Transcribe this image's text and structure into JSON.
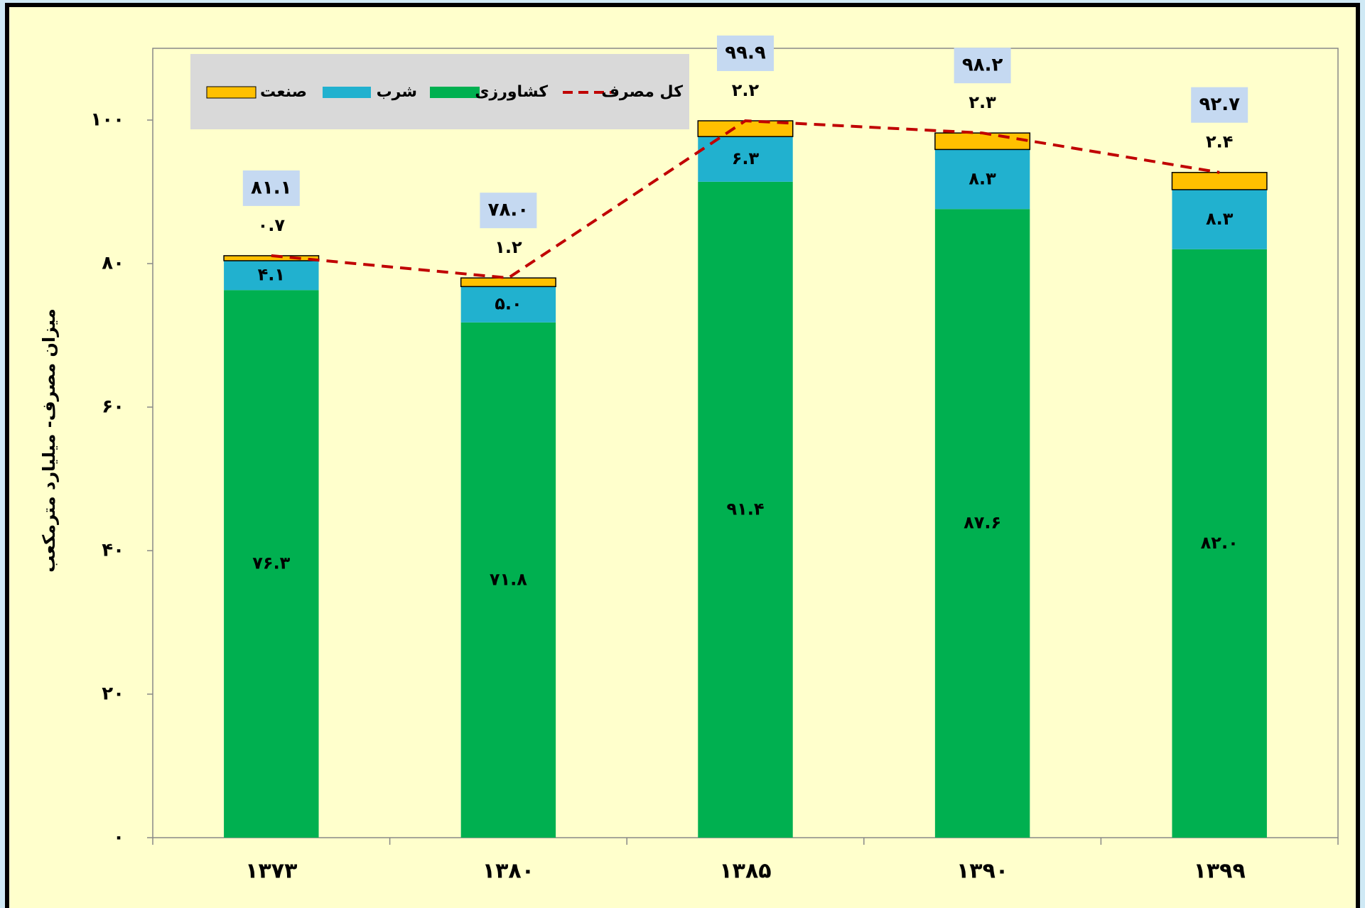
{
  "chart_data": {
    "type": "bar",
    "stacked": true,
    "y_label": "میزان مصرف- میلیارد مترمکعب",
    "categories": [
      "۱۳۷۳",
      "۱۳۸۰",
      "۱۳۸۵",
      "۱۳۹۰",
      "۱۳۹۹"
    ],
    "series": [
      {
        "name": "کشاورزی",
        "color": "#00b050",
        "values": [
          76.3,
          71.8,
          91.4,
          87.6,
          82.0
        ],
        "value_labels": [
          "۷۶.۳",
          "۷۱.۸",
          "۹۱.۴",
          "۸۷.۶",
          "۸۲.۰"
        ]
      },
      {
        "name": "شرب",
        "color": "#21b1cf",
        "values": [
          4.1,
          5.0,
          6.3,
          8.3,
          8.3
        ],
        "value_labels": [
          "۴.۱",
          "۵.۰",
          "۶.۳",
          "۸.۳",
          "۸.۳"
        ]
      },
      {
        "name": "صنعت",
        "color": "#ffc000",
        "values": [
          0.7,
          1.2,
          2.2,
          2.3,
          2.4
        ],
        "value_labels": [
          "۰.۷",
          "۱.۲",
          "۲.۲",
          "۲.۳",
          "۲.۴"
        ]
      }
    ],
    "line": {
      "name": "کل مصرف",
      "color": "#c00000",
      "values": [
        81.1,
        78.0,
        99.9,
        98.2,
        92.7
      ],
      "value_labels": [
        "۸۱.۱",
        "۷۸.۰",
        "۹۹.۹",
        "۹۸.۲",
        "۹۲.۷"
      ]
    },
    "ylim": [
      0,
      110
    ],
    "yticks": [
      {
        "value": 0,
        "label": "۰"
      },
      {
        "value": 20,
        "label": "۲۰"
      },
      {
        "value": 40,
        "label": "۴۰"
      },
      {
        "value": 60,
        "label": "۶۰"
      },
      {
        "value": 80,
        "label": "۸۰"
      },
      {
        "value": 100,
        "label": "۱۰۰"
      }
    ]
  }
}
